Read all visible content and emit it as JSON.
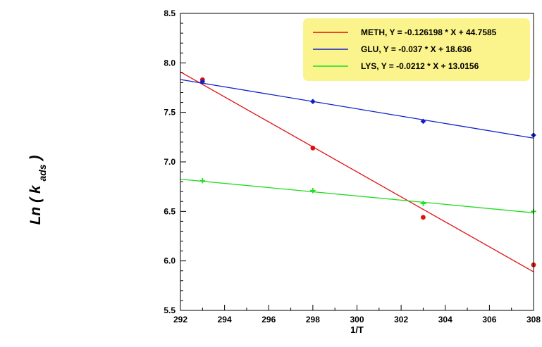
{
  "chart_data": {
    "type": "scatter",
    "xlabel": "1/T",
    "ylabel_main": "Ln",
    "ylabel_var": "k",
    "ylabel_sub": "ads",
    "xlim": [
      292,
      308
    ],
    "ylim": [
      5.5,
      8.5
    ],
    "xticks": [
      "292",
      "294",
      "296",
      "298",
      "300",
      "302",
      "304",
      "306",
      "308"
    ],
    "yticks": [
      "5.5",
      "6.0",
      "6.5",
      "7.0",
      "7.5",
      "8.0",
      "8.5"
    ],
    "grid": false,
    "legend_position": "top-right",
    "series": [
      {
        "name": "METH, Y = -0.126198 * X + 44.7585",
        "color": "#e01010",
        "marker": "circle",
        "x": [
          293,
          298,
          303,
          308
        ],
        "y": [
          7.83,
          7.14,
          6.44,
          5.96
        ],
        "fit": {
          "slope": -0.126198,
          "intercept": 44.7585
        }
      },
      {
        "name": "GLU, Y = -0.037 * X + 18.636",
        "color": "#1020c8",
        "marker": "diamond",
        "x": [
          293,
          298,
          303,
          308
        ],
        "y": [
          7.81,
          7.61,
          7.41,
          7.27
        ],
        "fit": {
          "slope": -0.037,
          "intercept": 18.636
        }
      },
      {
        "name": "LYS, Y = -0.0212 * X + 13.0156",
        "color": "#22dd22",
        "marker": "plus",
        "x": [
          293,
          298,
          303,
          308
        ],
        "y": [
          6.81,
          6.71,
          6.58,
          6.5
        ],
        "fit": {
          "slope": -0.0212,
          "intercept": 13.0156
        }
      }
    ]
  }
}
